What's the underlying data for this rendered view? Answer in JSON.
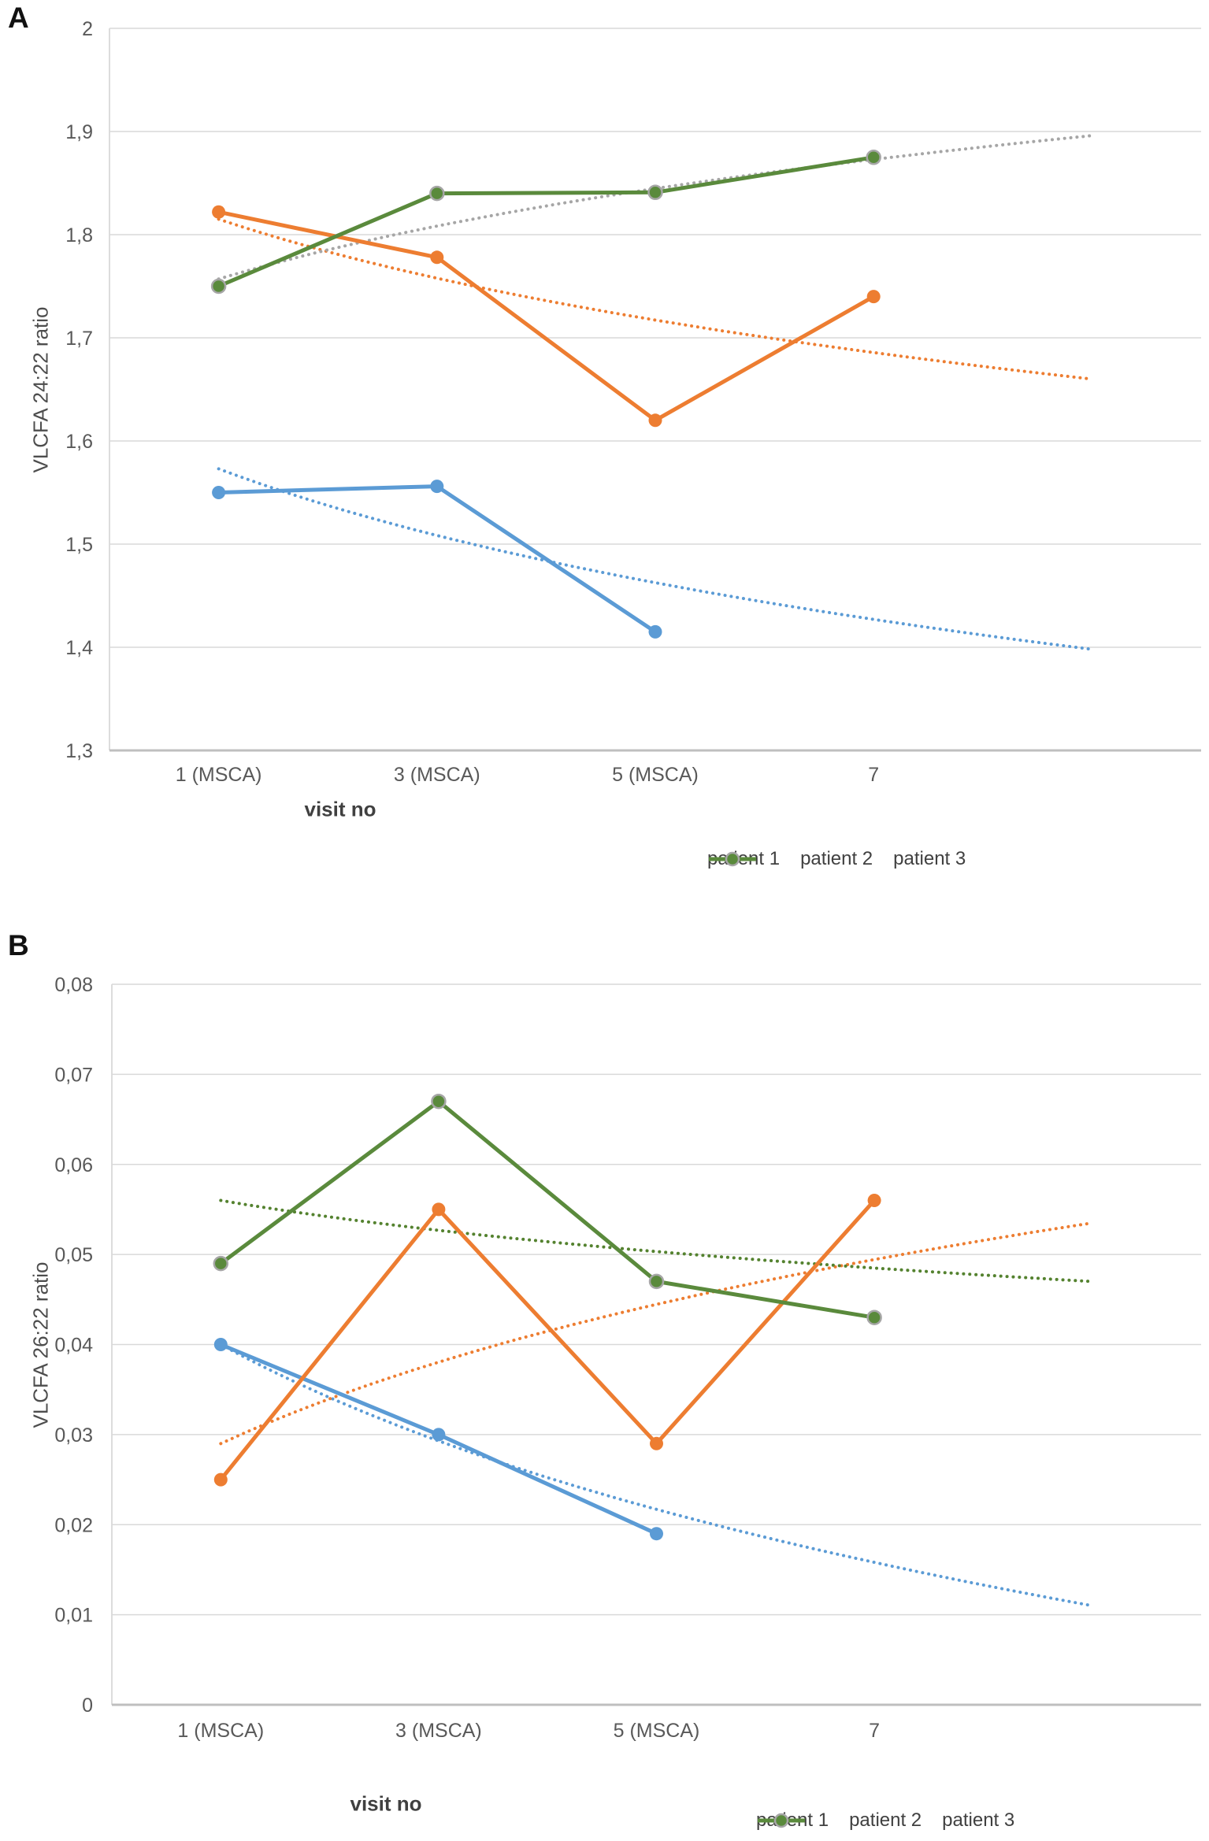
{
  "page": {
    "background": "#FFFFFF"
  },
  "colors": {
    "patient1_blue": "#5B9BD5",
    "patient2_orange": "#ED7D31",
    "patient3_green": "#5A8A3C",
    "trend_gray": "#A6A6A6",
    "trend_green_dark": "#54822F",
    "gridline": "#D9D9D9",
    "axis_line": "#BFBFBF",
    "tick_text": "#595959",
    "title_text": "#404040"
  },
  "chart_data": [
    {
      "type": "line",
      "panel_label": "A",
      "ylabel": "VLCFA 24:22 ratio",
      "xlabel": "visit no",
      "categories": [
        "1 (MSCA)",
        "3 (MSCA)",
        "5 (MSCA)",
        "7"
      ],
      "ylim": [
        1.3,
        2
      ],
      "ytick_labels": [
        "1,3",
        "1,4",
        "1,5",
        "1,6",
        "1,7",
        "1,8",
        "1,9",
        "2"
      ],
      "grid": true,
      "legend_position": "bottom-right",
      "series": [
        {
          "name": "patient 1",
          "color": "#5B9BD5",
          "marker": "circle",
          "values": [
            1.55,
            1.556,
            1.415,
            null
          ]
        },
        {
          "name": "patient 2",
          "color": "#ED7D31",
          "marker": "circle",
          "values": [
            1.822,
            1.778,
            1.62,
            1.74
          ]
        },
        {
          "name": "patient 3",
          "color": "#5A8A3C",
          "marker": "circle",
          "marker_outline": "#A6A6A6",
          "values": [
            1.75,
            1.84,
            1.841,
            1.875
          ]
        }
      ],
      "trendlines": [
        {
          "series": "patient 1",
          "style": "dotted",
          "color": "#5B9BD5",
          "start_value": 1.573,
          "end_value": 1.398,
          "shape": "log"
        },
        {
          "series": "patient 2",
          "style": "dotted",
          "color": "#ED7D31",
          "start_value": 1.815,
          "end_value": 1.66,
          "shape": "log"
        },
        {
          "series": "patient 3",
          "style": "dotted",
          "color": "#A6A6A6",
          "start_value": 1.757,
          "end_value": 1.896,
          "shape": "log"
        }
      ]
    },
    {
      "type": "line",
      "panel_label": "B",
      "ylabel": "VLCFA 26:22 ratio",
      "xlabel": "visit no",
      "categories": [
        "1 (MSCA)",
        "3 (MSCA)",
        "5 (MSCA)",
        "7"
      ],
      "ylim": [
        0,
        0.08
      ],
      "ytick_labels": [
        "0",
        "0,01",
        "0,02",
        "0,03",
        "0,04",
        "0,05",
        "0,06",
        "0,07",
        "0,08"
      ],
      "grid": true,
      "legend_position": "bottom-right",
      "series": [
        {
          "name": "patient 1",
          "color": "#5B9BD5",
          "marker": "circle",
          "values": [
            0.04,
            0.03,
            0.019,
            null
          ]
        },
        {
          "name": "patient 2",
          "color": "#ED7D31",
          "marker": "circle",
          "values": [
            0.025,
            0.055,
            0.029,
            0.056
          ]
        },
        {
          "name": "patient 3",
          "color": "#5A8A3C",
          "marker": "circle",
          "marker_outline": "#A6A6A6",
          "values": [
            0.049,
            0.067,
            0.047,
            0.043
          ]
        }
      ],
      "trendlines": [
        {
          "series": "patient 1",
          "style": "dotted",
          "color": "#5B9BD5",
          "start_value": 0.04,
          "end_value": 0.011,
          "shape": "log"
        },
        {
          "series": "patient 2",
          "style": "dotted",
          "color": "#ED7D31",
          "start_value": 0.029,
          "end_value": 0.0535,
          "shape": "log"
        },
        {
          "series": "patient 3",
          "style": "dotted",
          "color": "#54822F",
          "start_value": 0.056,
          "end_value": 0.047,
          "shape": "log"
        }
      ]
    }
  ]
}
